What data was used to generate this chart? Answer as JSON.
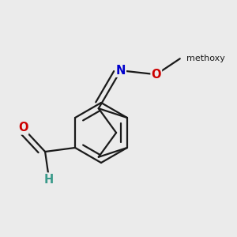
{
  "bg": "#ebebeb",
  "bond_color": "#1a1a1a",
  "lw": 1.6,
  "atom_colors": {
    "O": "#cc0000",
    "N": "#0000cc",
    "H": "#3a9a8a",
    "C": "#1a1a1a"
  },
  "fs": 10.0,
  "figsize": [
    3.0,
    3.0
  ],
  "dpi": 100
}
